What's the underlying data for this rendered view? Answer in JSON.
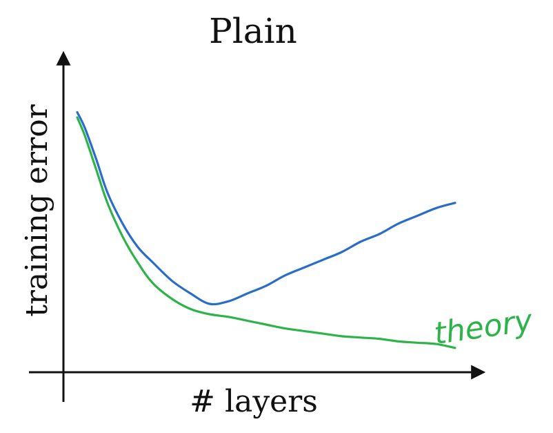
{
  "chart_data": {
    "type": "line",
    "title": "Plain",
    "xlabel": "# layers",
    "ylabel": "training error",
    "xlim": [
      0,
      100
    ],
    "ylim": [
      0,
      100
    ],
    "grid": false,
    "ticks": false,
    "annotations": [
      {
        "text": "theory",
        "series": "theory",
        "color": "#2db34a"
      }
    ],
    "series": [
      {
        "name": "theory",
        "color": "#2db34a",
        "x": [
          0,
          2,
          5,
          8,
          12,
          16,
          20,
          25,
          30,
          35,
          40,
          45,
          50,
          55,
          60,
          65,
          70,
          75,
          80,
          85,
          90,
          95,
          100
        ],
        "y": [
          92,
          85,
          72,
          59,
          46,
          36,
          28,
          22,
          18,
          16,
          15,
          13.5,
          12,
          10.5,
          9.5,
          8.5,
          7.5,
          7,
          6.5,
          5.5,
          5,
          4.5,
          3
        ]
      },
      {
        "color": "#2a6dc9",
        "x": [
          0,
          2,
          5,
          8,
          12,
          16,
          20,
          25,
          30,
          35,
          40,
          45,
          50,
          55,
          60,
          65,
          70,
          75,
          80,
          85,
          90,
          95,
          100
        ],
        "y": [
          94,
          88,
          76,
          63,
          51,
          42,
          36,
          29,
          24,
          20,
          21,
          24,
          27,
          31,
          34,
          37,
          40,
          44,
          47,
          51,
          54,
          57,
          59
        ]
      }
    ]
  }
}
